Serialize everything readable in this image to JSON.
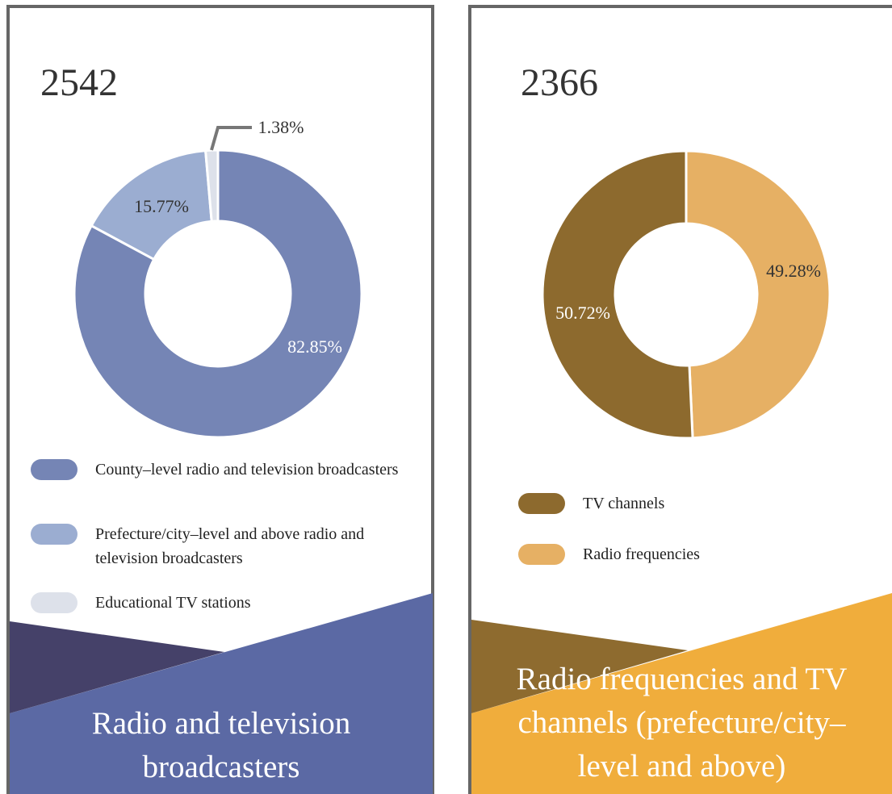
{
  "chart_data": [
    {
      "type": "donut",
      "title": "2542",
      "caption": [
        "Radio and television",
        "broadcasters"
      ],
      "categories": [
        "County–level radio and television broadcasters",
        "Prefecture/city–level and above radio and television broadcasters",
        "Educational TV stations"
      ],
      "values": [
        82.85,
        15.77,
        1.38
      ],
      "value_labels": [
        "82.85%",
        "15.77%",
        "1.38%"
      ],
      "colors": [
        "#7585b5",
        "#9badd1",
        "#dde1ea"
      ]
    },
    {
      "type": "donut",
      "title": "2366",
      "caption": [
        "Radio frequencies and TV",
        "channels (prefecture/city–",
        "level and above)"
      ],
      "categories": [
        "TV channels",
        "Radio frequencies"
      ],
      "values": [
        50.72,
        49.28
      ],
      "value_labels": [
        "50.72%",
        "49.28%"
      ],
      "colors": [
        "#8d6a2e",
        "#e6b064"
      ],
      "start_with": 1
    }
  ]
}
